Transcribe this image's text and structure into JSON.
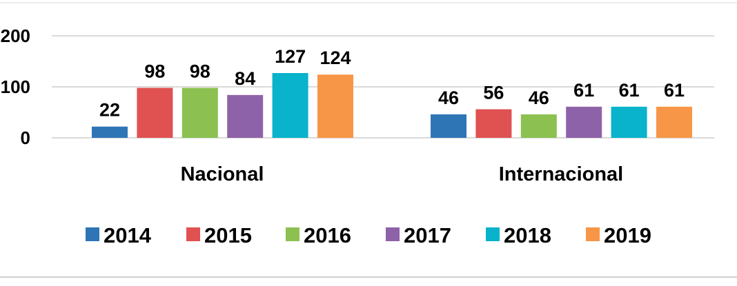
{
  "chart_data": {
    "type": "bar",
    "categories": [
      "Nacional",
      "Internacional"
    ],
    "series": [
      {
        "name": "2014",
        "color": "#2E75B6",
        "values": [
          22,
          46
        ]
      },
      {
        "name": "2015",
        "color": "#E05151",
        "values": [
          98,
          56
        ]
      },
      {
        "name": "2016",
        "color": "#8CC152",
        "values": [
          98,
          46
        ]
      },
      {
        "name": "2017",
        "color": "#8E62A8",
        "values": [
          84,
          61
        ]
      },
      {
        "name": "2018",
        "color": "#08B3CB",
        "values": [
          127,
          61
        ]
      },
      {
        "name": "2019",
        "color": "#F79646",
        "values": [
          124,
          61
        ]
      }
    ],
    "yticks": [
      "0",
      "100",
      "200"
    ],
    "ylim": [
      0,
      200
    ],
    "grid": true,
    "legend_position": "bottom",
    "data_labels": true
  }
}
